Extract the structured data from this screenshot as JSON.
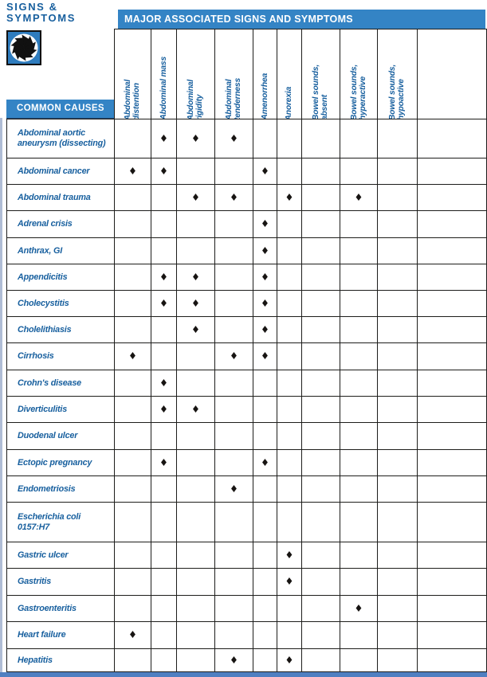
{
  "page": {
    "title_line1": "SIGNS &",
    "title_line2": "SYMPTOMS",
    "common_causes_label": "COMMON CAUSES",
    "major_bar_label": "MAJOR ASSOCIATED SIGNS AND SYMPTOMS"
  },
  "colors": {
    "bar_blue": "#3484c5",
    "text_blue": "#175f9e",
    "border_black": "#1d1d1b",
    "diamond_black": "#171412",
    "left_strip_blue": "#b0bdd5",
    "bottom_bar_blue": "#4f7fc1",
    "logo_blue": "#2e7cbe"
  },
  "icons": {
    "logo": "pinwheel-starburst-logo",
    "marker": "black-diamond"
  },
  "table": {
    "marker_glyph": "◆",
    "columns": [
      {
        "label_lines": [
          "Abdominal",
          "distention"
        ]
      },
      {
        "label_lines": [
          "Abdominal mass"
        ]
      },
      {
        "label_lines": [
          "Abdominal",
          "rigidity"
        ]
      },
      {
        "label_lines": [
          "Abdominal",
          "tenderness"
        ]
      },
      {
        "label_lines": [
          "Amenorrhea"
        ]
      },
      {
        "label_lines": [
          "Anorexia"
        ]
      },
      {
        "label_lines": [
          "Bowel sounds,",
          "absent"
        ]
      },
      {
        "label_lines": [
          "Bowel sounds,",
          "hyperactive"
        ]
      },
      {
        "label_lines": [
          "Bowel sounds,",
          "hypoactive"
        ]
      },
      {
        "label_lines": []
      }
    ],
    "rows": [
      {
        "label_lines": [
          "Abdominal aortic",
          "aneurysm (dissecting)"
        ],
        "marks": [
          1,
          2,
          3
        ]
      },
      {
        "label_lines": [
          "Abdominal cancer"
        ],
        "marks": [
          0,
          1,
          4
        ]
      },
      {
        "label_lines": [
          "Abdominal trauma"
        ],
        "marks": [
          2,
          3,
          5,
          7
        ]
      },
      {
        "label_lines": [
          "Adrenal crisis"
        ],
        "marks": [
          4
        ]
      },
      {
        "label_lines": [
          "Anthrax, GI"
        ],
        "marks": [
          4
        ]
      },
      {
        "label_lines": [
          "Appendicitis"
        ],
        "marks": [
          1,
          2,
          4
        ]
      },
      {
        "label_lines": [
          "Cholecystitis"
        ],
        "marks": [
          1,
          2,
          4
        ]
      },
      {
        "label_lines": [
          "Cholelithiasis"
        ],
        "marks": [
          2,
          4
        ]
      },
      {
        "label_lines": [
          "Cirrhosis"
        ],
        "marks": [
          0,
          3,
          4
        ]
      },
      {
        "label_lines": [
          "Crohn's disease"
        ],
        "marks": [
          1
        ]
      },
      {
        "label_lines": [
          "Diverticulitis"
        ],
        "marks": [
          1,
          2
        ]
      },
      {
        "label_lines": [
          "Duodenal ulcer"
        ],
        "marks": []
      },
      {
        "label_lines": [
          "Ectopic pregnancy"
        ],
        "marks": [
          1,
          4
        ]
      },
      {
        "label_lines": [
          "Endometriosis"
        ],
        "marks": [
          3
        ]
      },
      {
        "label_lines": [
          "Escherichia coli",
          "0157:H7"
        ],
        "marks": []
      },
      {
        "label_lines": [
          "Gastric ulcer"
        ],
        "marks": [
          5
        ]
      },
      {
        "label_lines": [
          "Gastritis"
        ],
        "marks": [
          5
        ]
      },
      {
        "label_lines": [
          "Gastroenteritis"
        ],
        "marks": [
          7
        ]
      },
      {
        "label_lines": [
          "Heart failure"
        ],
        "marks": [
          0
        ]
      },
      {
        "label_lines": [
          "Hepatitis"
        ],
        "marks": [
          3,
          5
        ]
      }
    ]
  }
}
